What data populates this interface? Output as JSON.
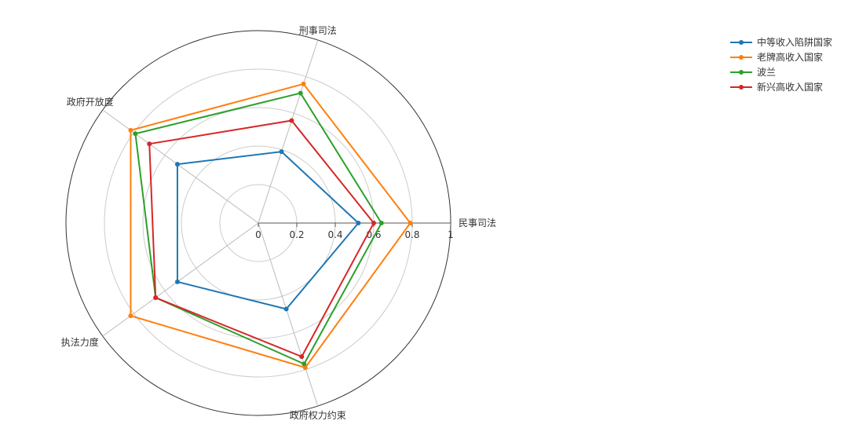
{
  "chart_data": {
    "type": "radar",
    "title": "",
    "axes": [
      "民事司法",
      "刑事司法",
      "政府开放度",
      "执法力度",
      "政府权力约束"
    ],
    "rlim": [
      0,
      1
    ],
    "ticks": [
      0,
      0.2,
      0.4,
      0.6,
      0.8,
      1
    ],
    "tick_labels": [
      "0",
      "0.2",
      "0.4",
      "0.6",
      "0.8",
      "1"
    ],
    "grid": true,
    "legend_position": "top-right",
    "series": [
      {
        "name": "中等收入陷阱国家",
        "color": "#1f77b4",
        "values": [
          0.52,
          0.39,
          0.52,
          0.52,
          0.47
        ]
      },
      {
        "name": "老牌高收入国家",
        "color": "#ff7f0e",
        "values": [
          0.79,
          0.76,
          0.82,
          0.82,
          0.79
        ]
      },
      {
        "name": "波兰",
        "color": "#2ca02c",
        "values": [
          0.64,
          0.71,
          0.79,
          0.66,
          0.77
        ]
      },
      {
        "name": "新兴高收入国家",
        "color": "#d62728",
        "values": [
          0.6,
          0.56,
          0.7,
          0.66,
          0.73
        ]
      }
    ]
  }
}
